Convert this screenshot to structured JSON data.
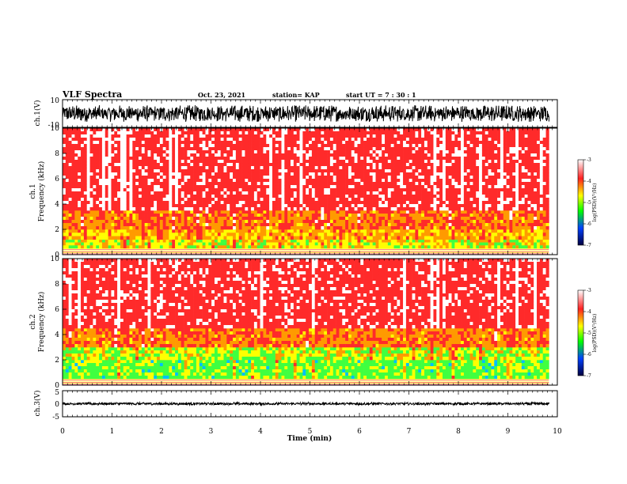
{
  "header": {
    "title": "VLF Spectra",
    "date": "Oct. 23, 2021",
    "station": "station= KAP",
    "start": "start  UT  =   7 : 30 : 1"
  },
  "chart_data": [
    {
      "type": "line",
      "name": "ch1-waveform",
      "ylabel": "ch.1(V)",
      "yticks": [
        "10",
        "-10"
      ],
      "ylim": [
        -10,
        10
      ],
      "xlim": [
        0,
        9.83
      ],
      "envelope": {
        "min": -6,
        "max": 6
      }
    },
    {
      "type": "heatmap",
      "name": "ch1-spectrogram",
      "ylabel_top": "ch.1",
      "ylabel": "Frequency  (kHz)",
      "yticks": [
        "0",
        "2",
        "4",
        "6",
        "8",
        "10"
      ],
      "ylim": [
        0,
        10
      ],
      "xlim": [
        0,
        9.83
      ],
      "bands": [
        {
          "from": 0.5,
          "to": 1.2,
          "level": -4.8
        },
        {
          "from": 1.2,
          "to": 2.0,
          "level": -4.5
        },
        {
          "from": 2.0,
          "to": 3.5,
          "level": -4.2
        },
        {
          "from": 3.5,
          "to": 10.0,
          "level": -3.6
        }
      ],
      "colorbar": {
        "label": "log(PSD)(V²/Hz)",
        "ticks": [
          "-3",
          "-4",
          "-5",
          "-6",
          "-7"
        ],
        "range": [
          -7,
          -3
        ]
      }
    },
    {
      "type": "heatmap",
      "name": "ch2-spectrogram",
      "ylabel_top": "ch.2",
      "ylabel": "Frequency  (kHz)",
      "yticks": [
        "0",
        "2",
        "4",
        "6",
        "8",
        "10"
      ],
      "ylim": [
        0,
        10
      ],
      "xlim": [
        0,
        9.83
      ],
      "bands": [
        {
          "from": 0.5,
          "to": 2.0,
          "level": -5.2
        },
        {
          "from": 2.0,
          "to": 3.0,
          "level": -4.9
        },
        {
          "from": 3.0,
          "to": 4.5,
          "level": -4.2
        },
        {
          "from": 4.5,
          "to": 10.0,
          "level": -3.6
        }
      ],
      "colorbar": {
        "label": "log(PSD)(V²/Hz)",
        "ticks": [
          "-3",
          "-4",
          "-5",
          "-6",
          "-7"
        ],
        "range": [
          -7,
          -3
        ]
      }
    },
    {
      "type": "line",
      "name": "ch3-waveform",
      "ylabel": "ch.3(V)",
      "yticks": [
        "5",
        "0",
        "-5"
      ],
      "ylim": [
        -5,
        5
      ],
      "xlim": [
        0,
        9.83
      ],
      "envelope": {
        "min": -0.5,
        "max": 0.5
      }
    }
  ],
  "xaxis": {
    "label": "Time  (min)",
    "ticks": [
      "0",
      "1",
      "2",
      "3",
      "4",
      "5",
      "6",
      "7",
      "8",
      "9",
      "10"
    ],
    "xlim": [
      0,
      10
    ]
  },
  "colors": {
    "background": "#ffffff",
    "waveform": "#000000",
    "axis": "#000000"
  }
}
